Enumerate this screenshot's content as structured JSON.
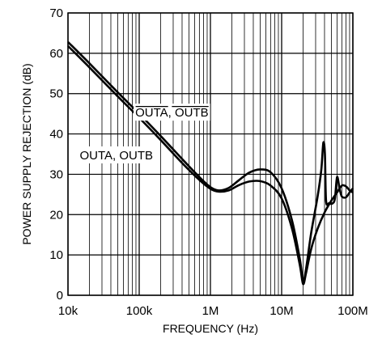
{
  "chart_data": {
    "type": "line",
    "xlabel": "FREQUENCY (Hz)",
    "ylabel": "POWER SUPPLY REJECTION (dB)",
    "xscale": "log",
    "xlim": [
      10000,
      100000000
    ],
    "ylim": [
      0,
      70
    ],
    "grid": true,
    "x_ticks": [
      {
        "value": 10000,
        "label": "10k"
      },
      {
        "value": 100000,
        "label": "100k"
      },
      {
        "value": 1000000,
        "label": "1M"
      },
      {
        "value": 10000000,
        "label": "10M"
      },
      {
        "value": 100000000,
        "label": "100M"
      }
    ],
    "y_ticks": [
      {
        "value": 0,
        "label": "0"
      },
      {
        "value": 10,
        "label": "10"
      },
      {
        "value": 20,
        "label": "20"
      },
      {
        "value": 30,
        "label": "30"
      },
      {
        "value": 40,
        "label": "40"
      },
      {
        "value": 50,
        "label": "50"
      },
      {
        "value": 60,
        "label": "60"
      },
      {
        "value": 70,
        "label": "70"
      }
    ],
    "series": [
      {
        "name": "OUTA, OUTB",
        "overline": true,
        "label_at": [
          88000,
          44.3
        ],
        "points": [
          [
            10000,
            62.8
          ],
          [
            20000,
            57.5
          ],
          [
            50000,
            50.3
          ],
          [
            100000,
            45.0
          ],
          [
            200000,
            39.5
          ],
          [
            400000,
            33.8
          ],
          [
            700000,
            29.3
          ],
          [
            1000000,
            26.8
          ],
          [
            1300000,
            26.0
          ],
          [
            1800000,
            26.6
          ],
          [
            2500000,
            28.5
          ],
          [
            3500000,
            30.4
          ],
          [
            5000000,
            31.2
          ],
          [
            7000000,
            30.5
          ],
          [
            10000000,
            26.5
          ],
          [
            14000000,
            18.5
          ],
          [
            18000000,
            9.0
          ],
          [
            20000000,
            3.5
          ],
          [
            22000000,
            6.5
          ],
          [
            26000000,
            15.5
          ],
          [
            32000000,
            24.5
          ],
          [
            36000000,
            31.0
          ],
          [
            38500000,
            37.8
          ],
          [
            40500000,
            35.0
          ],
          [
            42000000,
            23.5
          ],
          [
            46000000,
            22.8
          ],
          [
            52000000,
            22.8
          ],
          [
            56000000,
            24.0
          ],
          [
            60000000,
            29.3
          ],
          [
            65000000,
            26.5
          ],
          [
            70000000,
            24.5
          ],
          [
            80000000,
            24.3
          ],
          [
            90000000,
            25.5
          ],
          [
            100000000,
            26.5
          ]
        ]
      },
      {
        "name": "OUTA, OUTB",
        "overline": false,
        "label_at": [
          14600,
          33.7
        ],
        "points": [
          [
            10000,
            61.8
          ],
          [
            20000,
            56.5
          ],
          [
            50000,
            49.3
          ],
          [
            100000,
            44.0
          ],
          [
            200000,
            38.5
          ],
          [
            400000,
            32.8
          ],
          [
            700000,
            28.6
          ],
          [
            1000000,
            26.4
          ],
          [
            1300000,
            25.7
          ],
          [
            1800000,
            26.0
          ],
          [
            2500000,
            27.3
          ],
          [
            3500000,
            28.2
          ],
          [
            5000000,
            28.3
          ],
          [
            7000000,
            27.2
          ],
          [
            10000000,
            24.0
          ],
          [
            14000000,
            16.5
          ],
          [
            18000000,
            7.5
          ],
          [
            20000000,
            2.8
          ],
          [
            22000000,
            5.5
          ],
          [
            26000000,
            11.5
          ],
          [
            32000000,
            16.5
          ],
          [
            40000000,
            20.5
          ],
          [
            50000000,
            23.5
          ],
          [
            60000000,
            25.5
          ],
          [
            70000000,
            27.2
          ],
          [
            80000000,
            27.0
          ],
          [
            90000000,
            26.0
          ],
          [
            100000000,
            25.5
          ]
        ]
      }
    ]
  }
}
